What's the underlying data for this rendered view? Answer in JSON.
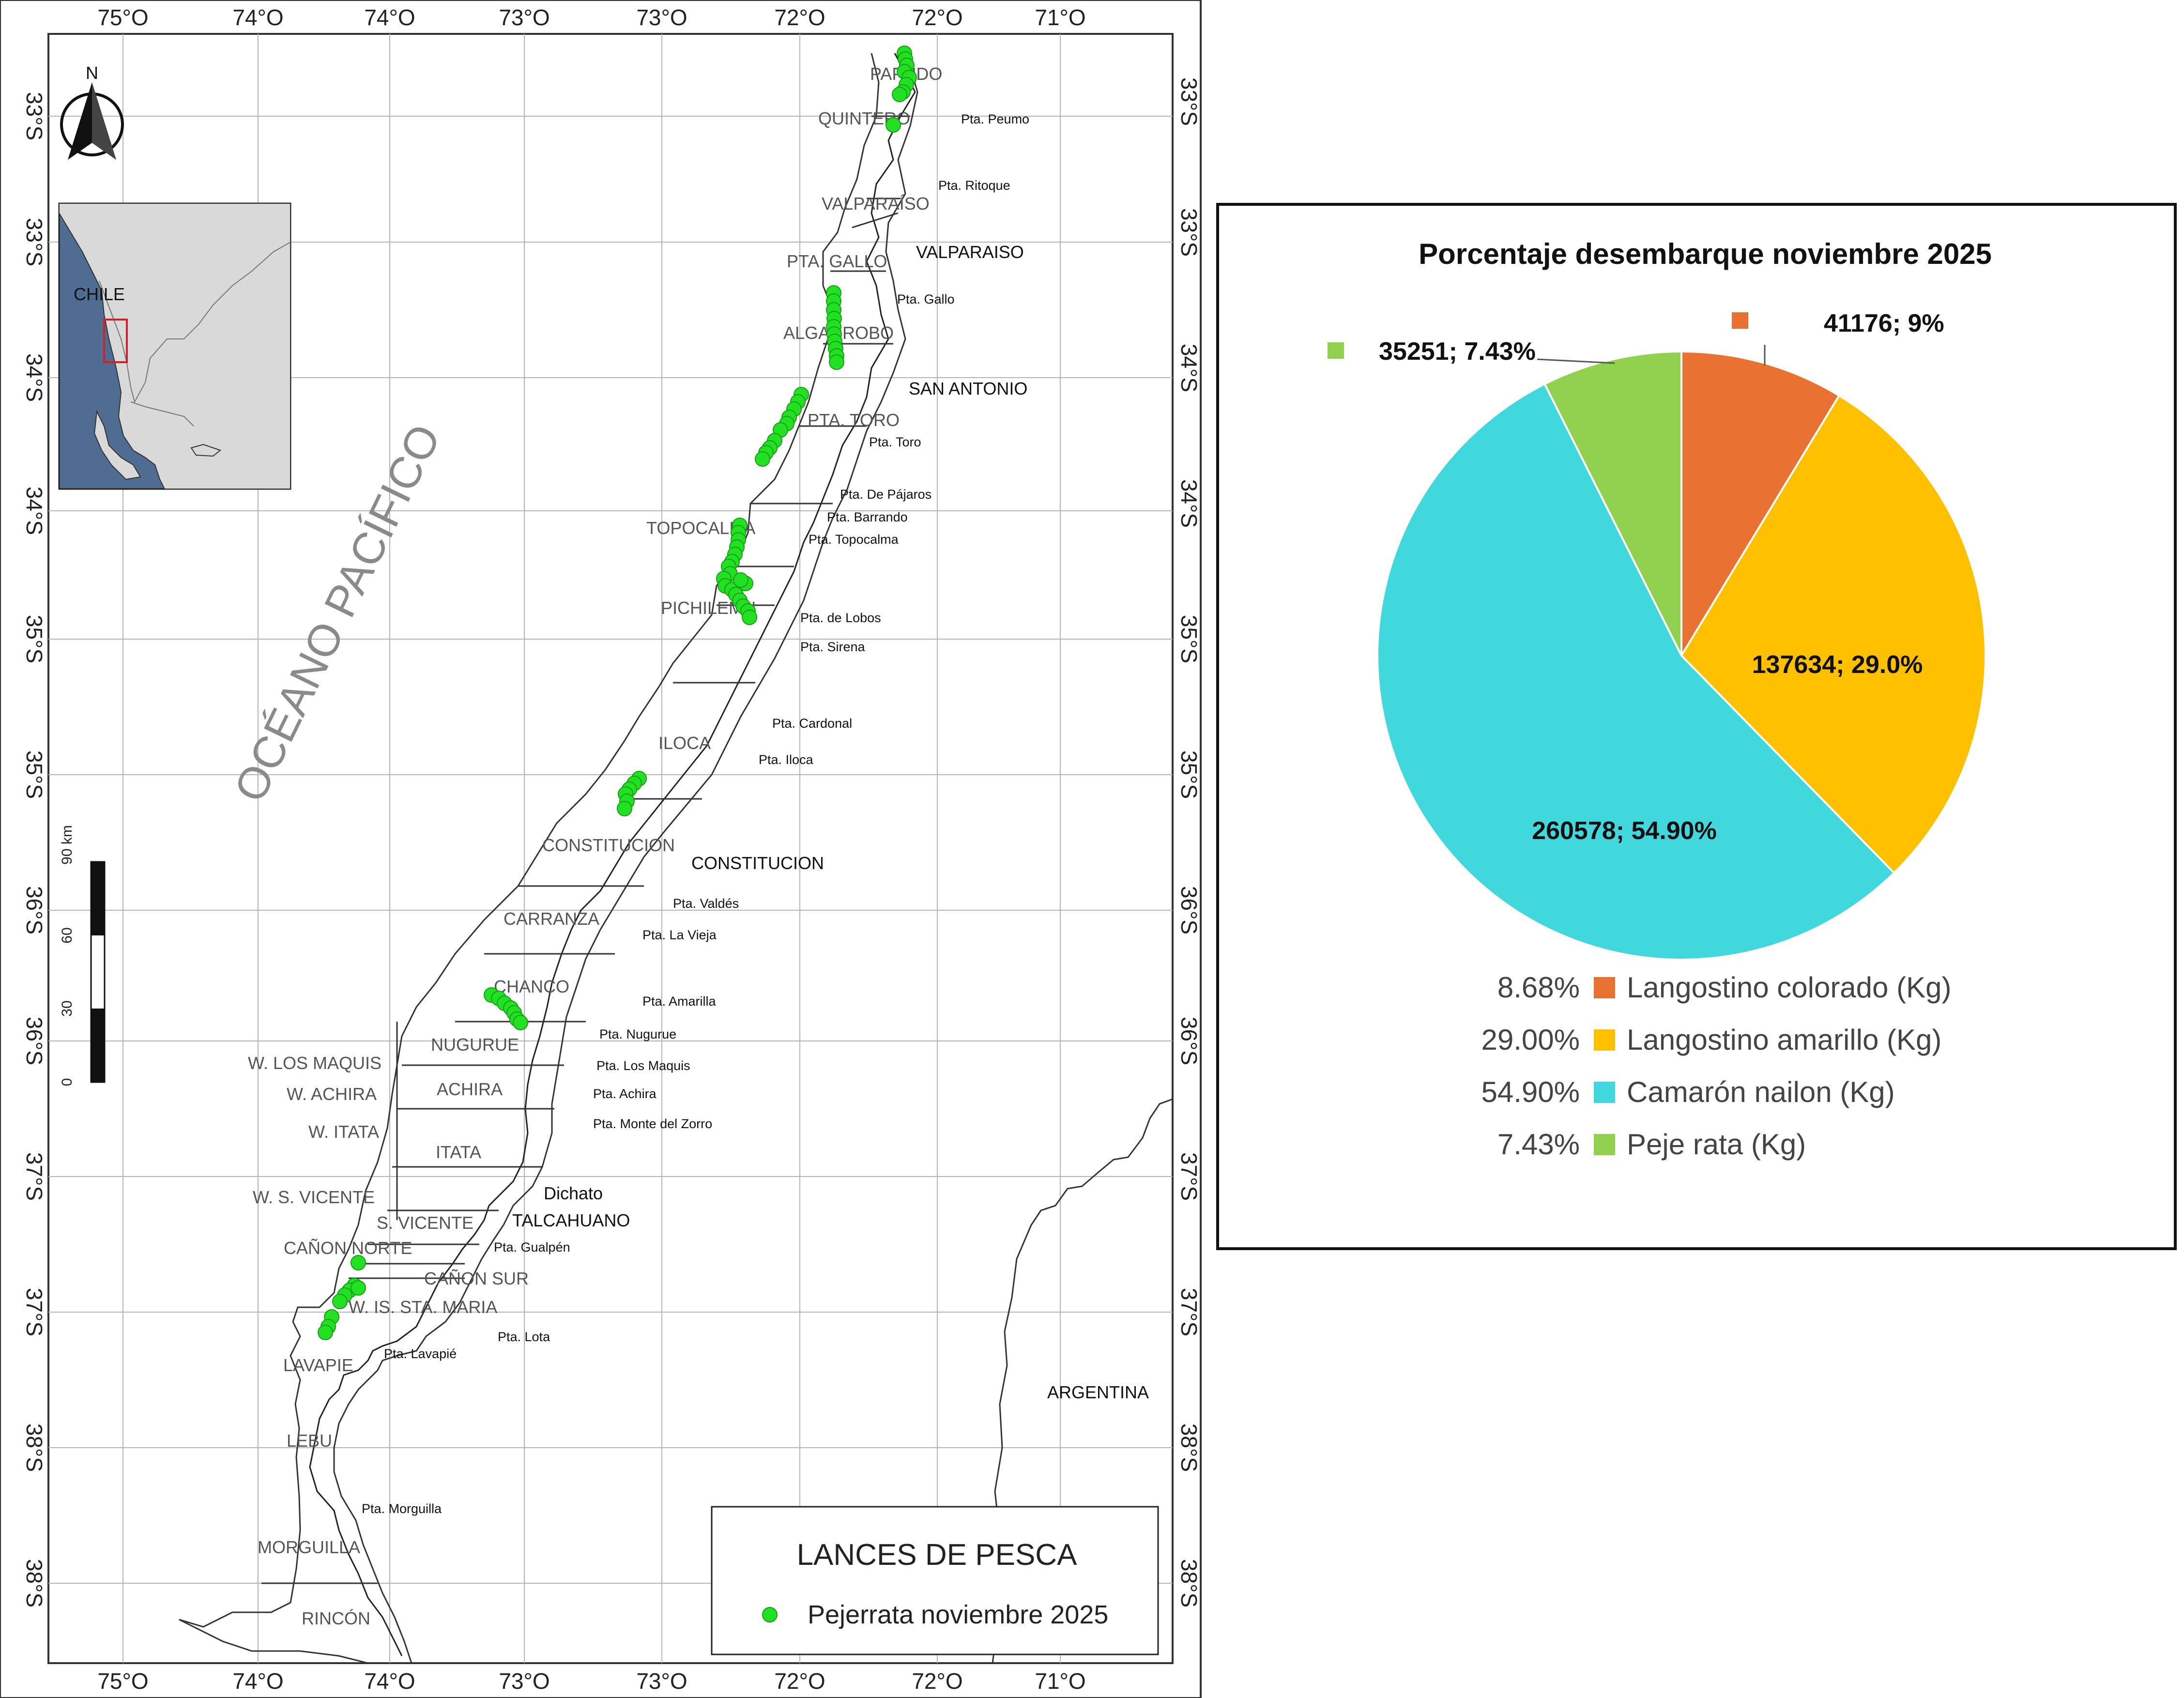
{
  "map": {
    "lon_labels": [
      "75°O",
      "74°O",
      "74°O",
      "73°O",
      "73°O",
      "72°O",
      "72°O",
      "71°O"
    ],
    "lat_labels_left": [
      "33°S",
      "33°S",
      "34°S",
      "34°S",
      "35°S",
      "35°S",
      "36°S",
      "36°S",
      "37°S",
      "37°S",
      "38°S",
      "38°S"
    ],
    "lat_labels_right": [
      "33°S",
      "33°S",
      "34°S",
      "34°S",
      "35°S",
      "35°S",
      "36°S",
      "36°S",
      "37°S",
      "37°S",
      "38°S",
      "38°S"
    ],
    "ocean_label": "OCÉANO PACÍFICO",
    "inset_label": "CHILE",
    "north_label": "N",
    "zone_labels": [
      "PAPUDO",
      "QUINTERO",
      "VALPARAÍSO",
      "PTA. GALLO",
      "ALGARROBO",
      "PTA. TORO",
      "TOPOCALMA",
      "PICHILEMU",
      "ILOCA",
      "CONSTITUCION",
      "CARRANZA",
      "CHANCO",
      "NUGURUE",
      "W. LOS MAQUIS",
      "W. ACHIRA",
      "ACHIRA",
      "W. ITATA",
      "ITATA",
      "W. S. VICENTE",
      "S. VICENTE",
      "CAÑON NORTE",
      "CAÑON SUR",
      "W. IS. STA. MARIA",
      "LAVAPIE",
      "LEBU",
      "MORGUILLA",
      "RINCÓN"
    ],
    "point_labels": [
      "Pta. Peumo",
      "Pta. Ritoque",
      "Pta. Gallo",
      "Pta. Toro",
      "Pta. De Pájaros",
      "Pta. Barrando",
      "Pta. Topocalma",
      "Pta. de Lobos",
      "Pta. Sirena",
      "Pta. Cardonal",
      "Pta. Iloca",
      "Pta. Valdés",
      "Pta. La Vieja",
      "Pta. Amarilla",
      "Pta. Nugurue",
      "Pta. Los Maquis",
      "Pta. Achira",
      "Pta. Monte del Zorro",
      "Pta. Gualpén",
      "Pta. Lota",
      "Pta. Lavapié",
      "Pta. Morguilla"
    ],
    "place_labels": [
      "VALPARAISO",
      "SAN ANTONIO",
      "CONSTITUCION",
      "Dichato",
      "TALCAHUANO",
      "ARGENTINA"
    ],
    "scale": {
      "unit": "km",
      "ticks": [
        "0",
        "30",
        "60",
        "90 km"
      ]
    },
    "legend": {
      "title": "LANCES DE PESCA",
      "item": "Pejerrata noviembre 2025"
    },
    "colors": {
      "point": "#22e022",
      "inset_box": "#d0202a"
    }
  },
  "chart_data": {
    "type": "pie",
    "title": "Porcentaje desembarque noviembre 2025",
    "categories": [
      "Langostino colorado (Kg)",
      "Langostino amarillo (Kg)",
      "Camarón nailon (Kg)",
      "Peje rata (Kg)"
    ],
    "values": [
      41176,
      137634,
      260578,
      35251
    ],
    "percent": [
      8.68,
      29.0,
      54.9,
      7.43
    ],
    "data_labels": [
      "41176; 9%",
      "137634; 29.0%",
      "260578; 54.90%",
      "35251; 7.43%"
    ],
    "legend_percent_labels": [
      "8.68%",
      "29.00%",
      "54.90%",
      "7.43%"
    ],
    "colors": [
      "#e97132",
      "#ffc000",
      "#40d8dd",
      "#92d050"
    ],
    "legend_position": "bottom"
  }
}
